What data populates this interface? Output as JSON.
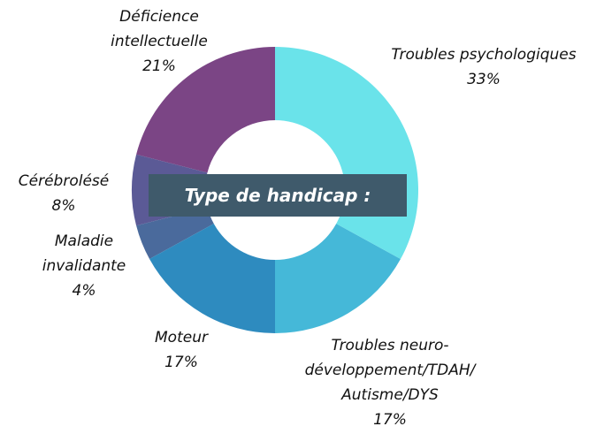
{
  "chart_data": {
    "type": "donut",
    "title": "Type de handicap :",
    "categories": [
      "Troubles psychologiques",
      "Troubles neuro-développement/TDAH/ Autisme/DYS",
      "Moteur",
      "Maladie invalidante",
      "Cérébrolésé",
      "Déficience intellectuelle"
    ],
    "values": [
      33,
      17,
      17,
      4,
      8,
      21
    ],
    "value_labels": [
      "33%",
      "17%",
      "17%",
      "4%",
      "8%",
      "21%"
    ],
    "colors": [
      "#6ae3ea",
      "#45b8d8",
      "#2e8bbf",
      "#4a6a9c",
      "#5b5a96",
      "#7b4585"
    ]
  }
}
